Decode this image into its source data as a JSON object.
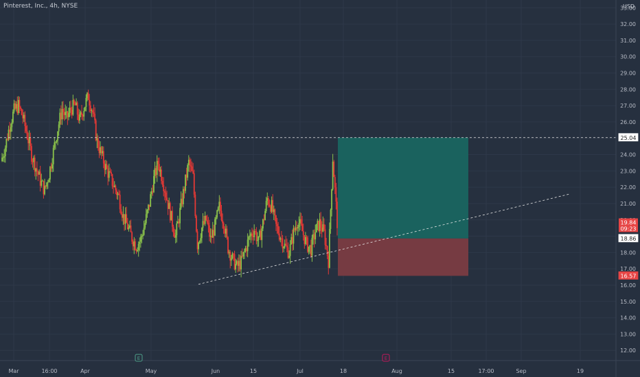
{
  "header": {
    "title": "Pinterest, Inc., 4h, NYSE",
    "currency": "USD"
  },
  "colors": {
    "background": "#26303f",
    "grid": "#2e3849",
    "axis_text": "#b8bcc6",
    "up": "#8bc34a",
    "down": "#e53935",
    "profit_zone": "#1a625e",
    "loss_zone": "#763b42",
    "dashed": "#e6e6e6",
    "price_tag_red": "#e64545",
    "earnings_green": "#4ea08a",
    "earnings_red": "#c2185b"
  },
  "chart_data": {
    "type": "candlestick",
    "x_axis": {
      "tick_labels": [
        "Mar",
        "16:00",
        "Apr",
        "May",
        "Jun",
        "15",
        "Jul",
        "18",
        "Aug",
        "15",
        "17:00",
        "Sep",
        "19"
      ]
    },
    "y_axis": {
      "range": [
        11.0,
        33.6
      ],
      "ticks": [
        12,
        13,
        14,
        15,
        16,
        17,
        18,
        19,
        20,
        21,
        22,
        23,
        24,
        25,
        26,
        27,
        28,
        29,
        30,
        31,
        32,
        33
      ],
      "tick_labels": [
        "12.00",
        "13.00",
        "14.00",
        "15.00",
        "16.00",
        "17.00",
        "18.00",
        "19.00",
        "20.00",
        "21.00",
        "22.00",
        "23.00",
        "24.00",
        "25.00",
        "26.00",
        "27.00",
        "28.00",
        "29.00",
        "30.00",
        "31.00",
        "32.00",
        "33.00"
      ]
    },
    "closes": [
      23.6,
      24.5,
      25.8,
      26.7,
      27.0,
      26.3,
      25.2,
      24.0,
      23.2,
      22.4,
      21.8,
      22.8,
      24.2,
      25.6,
      26.8,
      26.2,
      26.8,
      27.0,
      26.1,
      26.9,
      27.6,
      26.6,
      24.8,
      24.0,
      23.2,
      22.6,
      22.0,
      21.4,
      20.2,
      19.6,
      18.9,
      18.4,
      18.8,
      19.8,
      21.0,
      22.5,
      23.5,
      22.5,
      21.3,
      20.1,
      19.0,
      20.5,
      22.0,
      23.5,
      22.6,
      18.5,
      19.5,
      20.0,
      18.8,
      19.6,
      20.8,
      19.9,
      18.3,
      17.6,
      17.1,
      17.4,
      18.2,
      19.0,
      19.4,
      18.6,
      19.8,
      21.3,
      20.8,
      19.6,
      19.0,
      18.4,
      18.0,
      19.2,
      20.0,
      19.3,
      18.5,
      18.2,
      19.3,
      19.8,
      19.2,
      17.5,
      23.8,
      19.85
    ],
    "current_price": 19.84,
    "current_price_label": "19.84",
    "countdown_label": "09:23",
    "resistance": {
      "level": 25.04,
      "label": "25.04"
    },
    "position": {
      "target": 25.04,
      "entry": 18.86,
      "stop": 16.57,
      "entry_label": "18.86",
      "stop_label": "16.57"
    },
    "trendline": {
      "start_price": 16.05,
      "end_price": 21.6
    },
    "earnings_markers": [
      "E",
      "E"
    ]
  }
}
